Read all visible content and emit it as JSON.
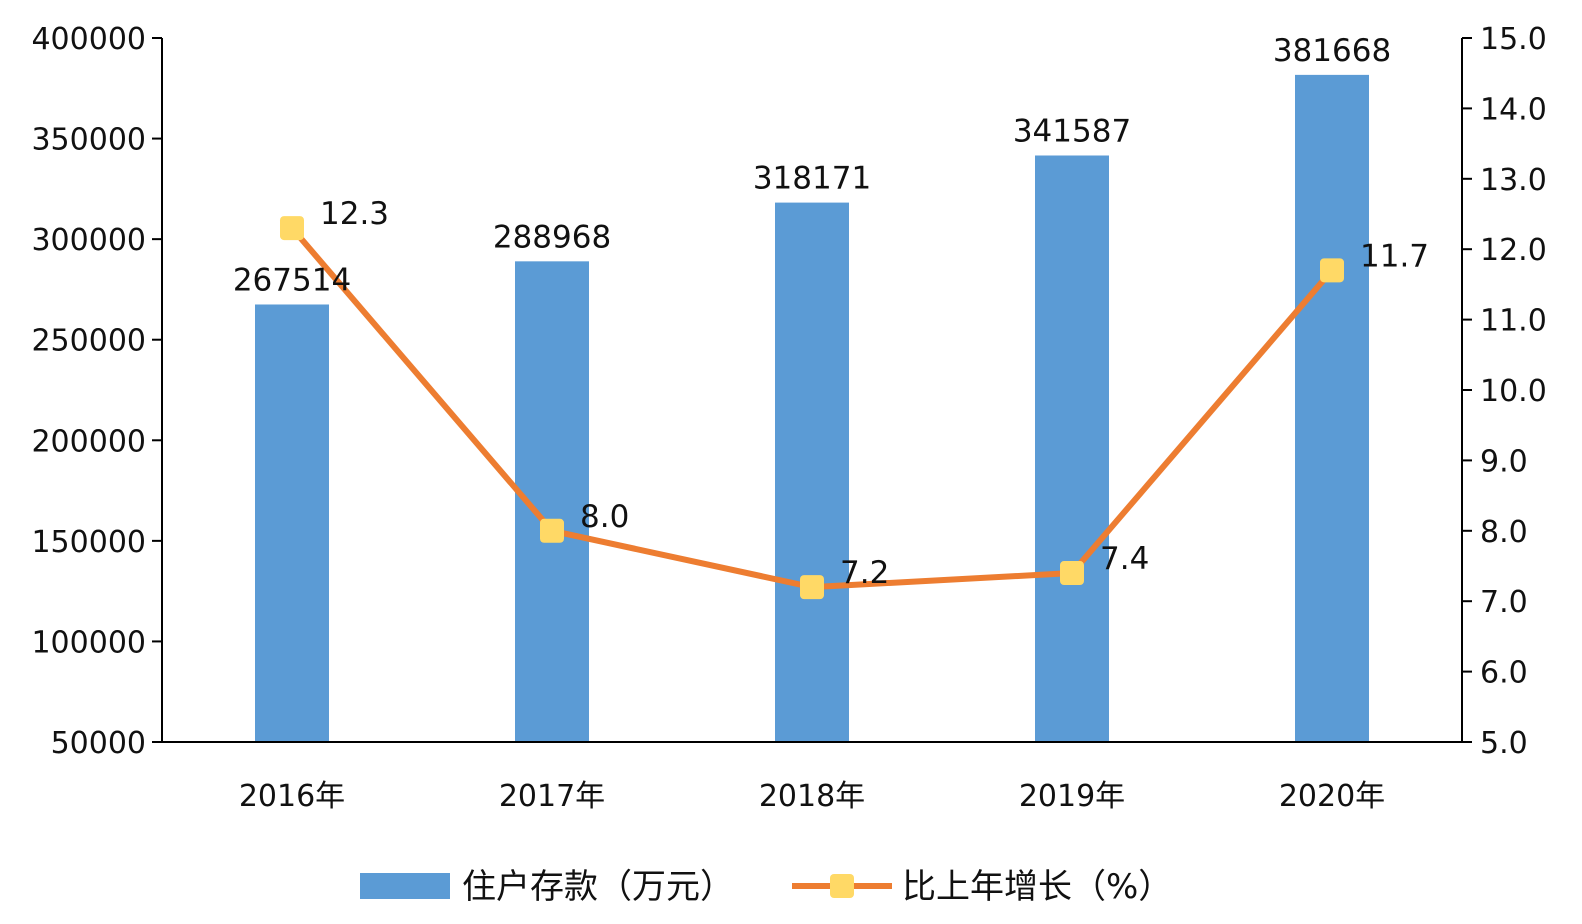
{
  "chart_data": {
    "type": "bar",
    "categories": [
      "2016年",
      "2017年",
      "2018年",
      "2019年",
      "2020年"
    ],
    "series": [
      {
        "name": "住户存款（万元）",
        "type": "bar",
        "axis": "left",
        "color": "#5b9bd5",
        "values": [
          267514,
          288968,
          318171,
          341587,
          381668
        ],
        "labels": [
          "267514",
          "288968",
          "318171",
          "341587",
          "381668"
        ]
      },
      {
        "name": "比上年增长（%）",
        "type": "line",
        "axis": "right",
        "color": "#ed7d31",
        "marker_color": "#ffd966",
        "values": [
          12.3,
          8.0,
          7.2,
          7.4,
          11.7
        ],
        "labels": [
          "12.3",
          "8.0",
          "7.2",
          "7.4",
          "11.7"
        ]
      }
    ],
    "y_left": {
      "ylim": [
        50000,
        400000
      ],
      "ticks": [
        "50000",
        "100000",
        "150000",
        "200000",
        "250000",
        "300000",
        "350000",
        "400000"
      ]
    },
    "y_right": {
      "ylim": [
        5.0,
        15.0
      ],
      "ticks": [
        "5.0",
        "6.0",
        "7.0",
        "8.0",
        "9.0",
        "10.0",
        "11.0",
        "12.0",
        "13.0",
        "14.0",
        "15.0"
      ]
    },
    "grid": false,
    "legend": "bottom"
  }
}
